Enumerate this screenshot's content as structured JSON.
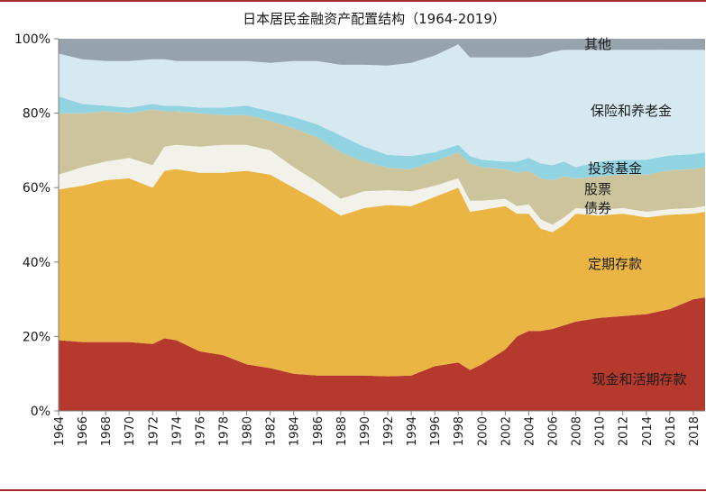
{
  "chart_data": {
    "type": "area",
    "stacked": true,
    "title": "日本居民金融资产配置结构（1964-2019）",
    "xlabel": "",
    "ylabel": "",
    "ylim": [
      0,
      100
    ],
    "y_ticks": [
      "0%",
      "20%",
      "40%",
      "60%",
      "80%",
      "100%"
    ],
    "x_ticks": [
      "1964",
      "1966",
      "1968",
      "1970",
      "1972",
      "1974",
      "1976",
      "1978",
      "1980",
      "1982",
      "1984",
      "1986",
      "1988",
      "1990",
      "1992",
      "1994",
      "1996",
      "1998",
      "2000",
      "2002",
      "2004",
      "2006",
      "2008",
      "2010",
      "2012",
      "2014",
      "2016",
      "2018"
    ],
    "x": [
      1964,
      1966,
      1968,
      1970,
      1972,
      1973,
      1974,
      1976,
      1978,
      1980,
      1982,
      1984,
      1986,
      1988,
      1990,
      1992,
      1994,
      1996,
      1998,
      1999,
      2000,
      2002,
      2003,
      2004,
      2005,
      2006,
      2007,
      2008,
      2010,
      2012,
      2014,
      2016,
      2018,
      2019
    ],
    "colors": {
      "cash": "#b5392c",
      "time_deposit": "#ebb544",
      "bonds": "#f2f1ea",
      "stocks": "#cbc49c",
      "funds": "#92d3e1",
      "insurance": "#d6e8f0",
      "other": "#97a3ac"
    },
    "series": [
      {
        "key": "cash",
        "name": "现金和活期存款",
        "values": [
          19,
          18.5,
          18.5,
          18.5,
          18,
          19.5,
          19,
          16,
          15,
          12.5,
          11.5,
          10,
          9.5,
          9.5,
          9.5,
          9.3,
          9.5,
          12,
          13,
          11,
          12.5,
          16.5,
          20,
          21.5,
          21.5,
          22,
          23,
          24,
          25,
          25.5,
          26,
          27.5,
          30,
          30.5
        ]
      },
      {
        "key": "time_deposit",
        "name": "定期存款",
        "values": [
          40.5,
          42,
          43.5,
          44,
          42,
          45,
          46,
          48,
          49,
          52,
          52,
          50,
          47,
          43,
          45,
          46,
          45.5,
          45.5,
          47,
          42.5,
          41.5,
          38.5,
          33,
          31.5,
          27.5,
          26,
          27,
          29,
          27.5,
          27.5,
          26,
          25.5,
          23,
          23
        ]
      },
      {
        "key": "bonds",
        "name": "债券",
        "values": [
          4,
          5,
          5,
          5.5,
          6,
          6.5,
          6.5,
          7,
          7.5,
          7,
          6.5,
          5.5,
          5,
          4.5,
          4.5,
          4,
          4,
          3,
          2.5,
          3,
          2.5,
          2,
          2,
          2.5,
          2.5,
          2,
          2,
          1.5,
          1.5,
          1.5,
          1.5,
          1.5,
          1.5,
          1.5
        ]
      },
      {
        "key": "stocks",
        "name": "股票",
        "values": [
          16.5,
          14.5,
          13.5,
          12,
          15,
          9.5,
          9,
          9,
          8,
          8,
          8,
          10.5,
          12,
          12.5,
          8,
          6,
          6,
          6.5,
          7,
          10,
          9,
          8,
          9,
          9,
          11,
          12,
          11,
          8,
          9,
          9,
          10,
          10.5,
          10.5,
          10.5
        ]
      },
      {
        "key": "funds",
        "name": "投资基金",
        "values": [
          4.5,
          2.5,
          1.5,
          1.5,
          1.5,
          1.5,
          1.5,
          1.5,
          2,
          2.5,
          2.5,
          3,
          3.5,
          4.5,
          4,
          3.5,
          3.5,
          2.5,
          2,
          2,
          2,
          2,
          3,
          3.5,
          4,
          4,
          4,
          3,
          4,
          4,
          4,
          4,
          4,
          4
        ]
      },
      {
        "key": "insurance",
        "name": "保险和养老金",
        "values": [
          11.5,
          12,
          12,
          12.5,
          12,
          12.5,
          12,
          12.5,
          12.5,
          12,
          13,
          15,
          17,
          19,
          22,
          24,
          25,
          26,
          27,
          26.5,
          27.5,
          28,
          28,
          27,
          29,
          30.5,
          30,
          31.5,
          30,
          29.5,
          29.5,
          28.5,
          28,
          27.5
        ]
      },
      {
        "key": "other",
        "name": "其他",
        "values": [
          4,
          5.5,
          6,
          6,
          5.5,
          5.5,
          6,
          6,
          6,
          6,
          6.5,
          6,
          6,
          7,
          7,
          7.2,
          6.5,
          4.5,
          1.5,
          5,
          5,
          5,
          5,
          5,
          4.5,
          3.5,
          3,
          3,
          3,
          3,
          3,
          3,
          3,
          3
        ]
      }
    ],
    "series_labels": [
      "其他",
      "保险和养老金",
      "投资基金",
      "股票",
      "债券",
      "定期存款",
      "现金和活期存款"
    ]
  }
}
